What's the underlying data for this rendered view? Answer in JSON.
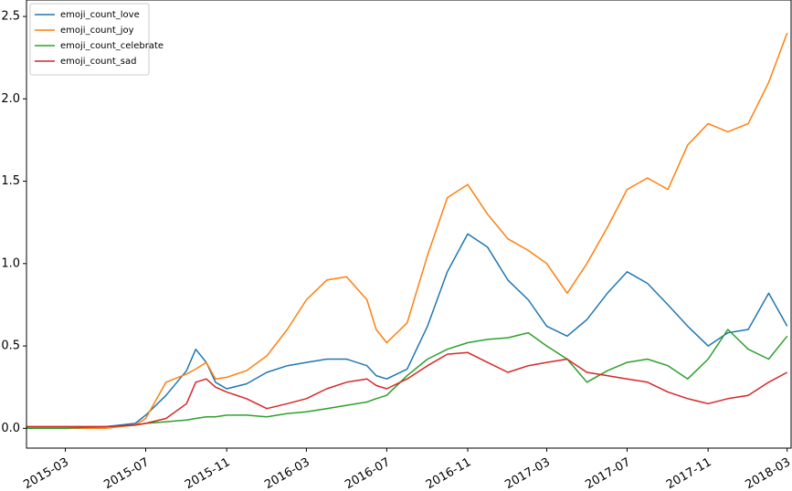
{
  "chart_data": {
    "type": "line",
    "title": "",
    "xlabel": "",
    "ylabel": "",
    "xlim": [
      "2015-01-01",
      "2018-03-07"
    ],
    "ylim": [
      -0.12,
      2.6
    ],
    "grid": false,
    "legend_position": "upper-left",
    "x_ticks": [
      "2015-03",
      "2015-07",
      "2015-11",
      "2016-03",
      "2016-07",
      "2016-11",
      "2017-03",
      "2017-07",
      "2017-11",
      "2018-03"
    ],
    "y_ticks": [
      "0.0",
      "0.5",
      "1.0",
      "1.5",
      "2.0",
      "2.5"
    ],
    "x": [
      "2015-01-01",
      "2015-03-01",
      "2015-05-01",
      "2015-06-15",
      "2015-07-01",
      "2015-08-01",
      "2015-09-01",
      "2015-09-15",
      "2015-10-01",
      "2015-10-15",
      "2015-11-01",
      "2015-12-01",
      "2016-01-01",
      "2016-02-01",
      "2016-03-01",
      "2016-04-01",
      "2016-05-01",
      "2016-06-01",
      "2016-06-15",
      "2016-07-01",
      "2016-08-01",
      "2016-09-01",
      "2016-10-01",
      "2016-11-01",
      "2016-12-01",
      "2017-01-01",
      "2017-02-01",
      "2017-03-01",
      "2017-04-01",
      "2017-05-01",
      "2017-06-01",
      "2017-07-01",
      "2017-08-01",
      "2017-09-01",
      "2017-10-01",
      "2017-11-01",
      "2017-12-01",
      "2018-01-01",
      "2018-02-01",
      "2018-03-01"
    ],
    "series": [
      {
        "name": "emoji_count_love",
        "color": "#1f77b4",
        "values": [
          0.01,
          0.01,
          0.01,
          0.03,
          0.08,
          0.2,
          0.35,
          0.48,
          0.4,
          0.28,
          0.24,
          0.27,
          0.34,
          0.38,
          0.4,
          0.42,
          0.42,
          0.38,
          0.32,
          0.3,
          0.36,
          0.62,
          0.95,
          1.18,
          1.1,
          0.9,
          0.78,
          0.62,
          0.56,
          0.66,
          0.82,
          0.95,
          0.88,
          0.75,
          0.62,
          0.5,
          0.58,
          0.6,
          0.82,
          0.62
        ]
      },
      {
        "name": "emoji_count_joy",
        "color": "#ff7f0e",
        "values": [
          0.0,
          0.0,
          0.0,
          0.02,
          0.06,
          0.28,
          0.33,
          0.36,
          0.4,
          0.3,
          0.31,
          0.35,
          0.44,
          0.6,
          0.78,
          0.9,
          0.92,
          0.78,
          0.6,
          0.52,
          0.64,
          1.05,
          1.4,
          1.48,
          1.3,
          1.15,
          1.08,
          1.0,
          0.82,
          1.0,
          1.22,
          1.45,
          1.52,
          1.45,
          1.72,
          1.85,
          1.8,
          1.85,
          2.1,
          2.4
        ]
      },
      {
        "name": "emoji_count_celebrate",
        "color": "#2ca02c",
        "values": [
          0.0,
          0.0,
          0.01,
          0.02,
          0.03,
          0.04,
          0.05,
          0.06,
          0.07,
          0.07,
          0.08,
          0.08,
          0.07,
          0.09,
          0.1,
          0.12,
          0.14,
          0.16,
          0.18,
          0.2,
          0.32,
          0.42,
          0.48,
          0.52,
          0.54,
          0.55,
          0.58,
          0.5,
          0.42,
          0.28,
          0.35,
          0.4,
          0.42,
          0.38,
          0.3,
          0.42,
          0.6,
          0.48,
          0.42,
          0.56
        ]
      },
      {
        "name": "emoji_count_sad",
        "color": "#d62728",
        "values": [
          0.01,
          0.01,
          0.01,
          0.02,
          0.03,
          0.06,
          0.15,
          0.28,
          0.3,
          0.25,
          0.22,
          0.18,
          0.12,
          0.15,
          0.18,
          0.24,
          0.28,
          0.3,
          0.26,
          0.24,
          0.3,
          0.38,
          0.45,
          0.46,
          0.4,
          0.34,
          0.38,
          0.4,
          0.42,
          0.34,
          0.32,
          0.3,
          0.28,
          0.22,
          0.18,
          0.15,
          0.18,
          0.2,
          0.28,
          0.34
        ]
      }
    ]
  }
}
